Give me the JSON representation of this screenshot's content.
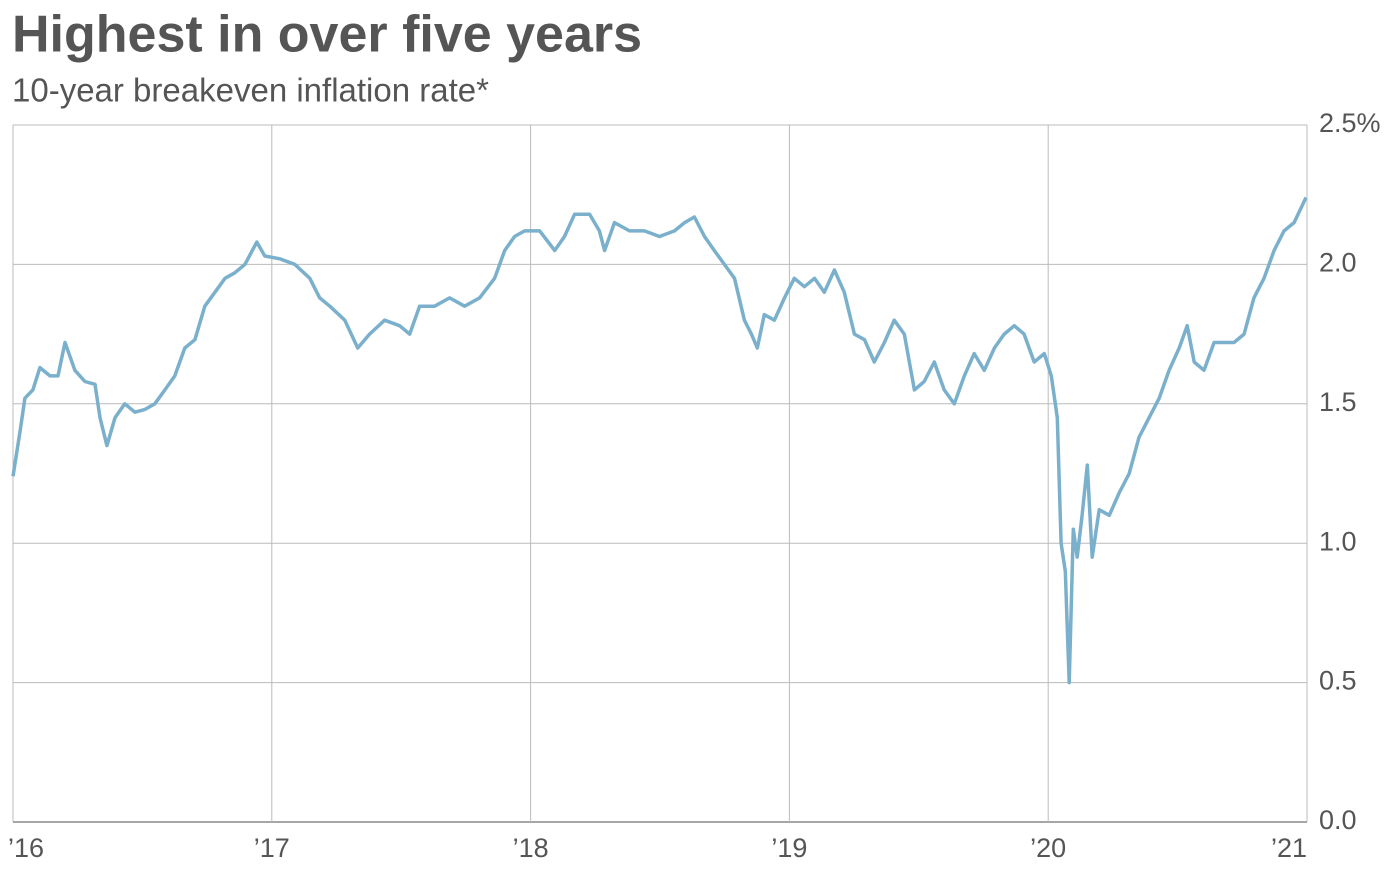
{
  "chart_data": {
    "type": "line",
    "title": "Highest in over five years",
    "subtitle": "10-year breakeven inflation rate*",
    "xlim": [
      2016,
      2021
    ],
    "xticks": [
      {
        "value": 2016,
        "label": "’16"
      },
      {
        "value": 2017,
        "label": "’17"
      },
      {
        "value": 2018,
        "label": "’18"
      },
      {
        "value": 2019,
        "label": "’19"
      },
      {
        "value": 2020,
        "label": "’20"
      },
      {
        "value": 2021,
        "label": "’21"
      }
    ],
    "ylim": [
      0,
      2.5
    ],
    "yticks": [
      {
        "value": 0,
        "label": "0.0"
      },
      0.5,
      {
        "value": 1,
        "label": "1.0"
      },
      1.5,
      {
        "value": 2,
        "label": "2.0"
      },
      {
        "value": 2.5,
        "label": "2.5%"
      }
    ],
    "grid": true,
    "series": [
      {
        "color": "#7ab0cc",
        "x": [
          2016.0,
          2016.027,
          2016.046,
          2016.077,
          2016.104,
          2016.143,
          2016.174,
          2016.201,
          2016.239,
          2016.278,
          2016.317,
          2016.336,
          2016.363,
          2016.394,
          2016.432,
          2016.471,
          2016.51,
          2016.548,
          2016.587,
          2016.625,
          2016.664,
          2016.703,
          2016.741,
          2016.78,
          2016.819,
          2016.857,
          2016.896,
          2016.942,
          2016.973,
          2017.031,
          2017.089,
          2017.147,
          2017.185,
          2017.224,
          2017.282,
          2017.332,
          2017.378,
          2017.436,
          2017.494,
          2017.533,
          2017.571,
          2017.629,
          2017.687,
          2017.745,
          2017.803,
          2017.861,
          2017.9,
          2017.938,
          2017.977,
          2018.035,
          2018.093,
          2018.131,
          2018.17,
          2018.228,
          2018.266,
          2018.286,
          2018.324,
          2018.382,
          2018.44,
          2018.498,
          2018.556,
          2018.595,
          2018.633,
          2018.672,
          2018.71,
          2018.749,
          2018.788,
          2018.826,
          2018.853,
          2018.876,
          2018.903,
          2018.942,
          2018.981,
          2019.019,
          2019.058,
          2019.097,
          2019.135,
          2019.174,
          2019.212,
          2019.251,
          2019.29,
          2019.328,
          2019.367,
          2019.405,
          2019.444,
          2019.483,
          2019.521,
          2019.56,
          2019.598,
          2019.637,
          2019.676,
          2019.714,
          2019.753,
          2019.792,
          2019.83,
          2019.869,
          2019.907,
          2019.946,
          2019.985,
          2020.012,
          2020.035,
          2020.05,
          2020.066,
          2020.081,
          2020.097,
          2020.112,
          2020.131,
          2020.151,
          2020.17,
          2020.197,
          2020.236,
          2020.274,
          2020.313,
          2020.351,
          2020.39,
          2020.429,
          2020.467,
          2020.506,
          2020.537,
          2020.564,
          2020.602,
          2020.641,
          2020.68,
          2020.718,
          2020.757,
          2020.795,
          2020.834,
          2020.873,
          2020.911,
          2020.95,
          2020.996
        ],
        "values": [
          1.24,
          1.4,
          1.52,
          1.55,
          1.63,
          1.6,
          1.6,
          1.72,
          1.62,
          1.58,
          1.57,
          1.45,
          1.35,
          1.45,
          1.5,
          1.47,
          1.48,
          1.5,
          1.55,
          1.6,
          1.7,
          1.73,
          1.85,
          1.9,
          1.95,
          1.97,
          2.0,
          2.08,
          2.03,
          2.02,
          2.0,
          1.95,
          1.88,
          1.85,
          1.8,
          1.7,
          1.75,
          1.8,
          1.78,
          1.75,
          1.85,
          1.85,
          1.88,
          1.85,
          1.88,
          1.95,
          2.05,
          2.1,
          2.12,
          2.12,
          2.05,
          2.1,
          2.18,
          2.18,
          2.12,
          2.05,
          2.15,
          2.12,
          2.12,
          2.1,
          2.12,
          2.15,
          2.17,
          2.1,
          2.05,
          2.0,
          1.95,
          1.8,
          1.75,
          1.7,
          1.82,
          1.8,
          1.88,
          1.95,
          1.92,
          1.95,
          1.9,
          1.98,
          1.9,
          1.75,
          1.73,
          1.65,
          1.72,
          1.8,
          1.75,
          1.55,
          1.58,
          1.65,
          1.55,
          1.5,
          1.6,
          1.68,
          1.62,
          1.7,
          1.75,
          1.78,
          1.75,
          1.65,
          1.68,
          1.6,
          1.45,
          1.0,
          0.9,
          0.5,
          1.05,
          0.95,
          1.1,
          1.28,
          0.95,
          1.12,
          1.1,
          1.18,
          1.25,
          1.38,
          1.45,
          1.52,
          1.62,
          1.7,
          1.78,
          1.65,
          1.62,
          1.72,
          1.72,
          1.72,
          1.75,
          1.88,
          1.95,
          2.05,
          2.12,
          2.15,
          2.24
        ]
      }
    ]
  }
}
